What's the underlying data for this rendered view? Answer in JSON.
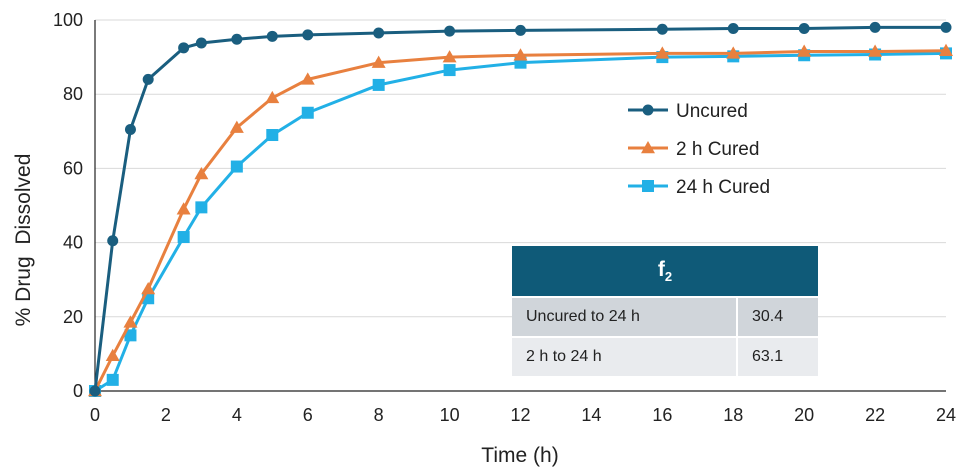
{
  "chart_data": {
    "type": "line",
    "xlabel": "Time (h)",
    "ylabel": "% Drug  Dissolved",
    "xlim": [
      0,
      24
    ],
    "ylim": [
      0,
      100
    ],
    "xticks": [
      "0",
      "2",
      "4",
      "6",
      "8",
      "10",
      "12",
      "14",
      "16",
      "18",
      "20",
      "22",
      "24"
    ],
    "yticks": [
      "0",
      "20",
      "40",
      "60",
      "80",
      "100"
    ],
    "grid": "horizontal",
    "legend_position": "right-middle",
    "series": [
      {
        "name": "Uncured",
        "color": "#1a5e7f",
        "marker": "circle",
        "x": [
          0,
          0.5,
          1,
          1.5,
          2.5,
          3,
          4,
          5,
          6,
          8,
          10,
          12,
          16,
          18,
          20,
          22,
          24
        ],
        "y": [
          0,
          40.5,
          70.5,
          84,
          92.5,
          93.8,
          94.8,
          95.6,
          96,
          96.5,
          97,
          97.2,
          97.5,
          97.7,
          97.7,
          98,
          98
        ]
      },
      {
        "name": "2 h Cured",
        "color": "#e8803f",
        "marker": "triangle",
        "x": [
          0,
          0.5,
          1,
          1.5,
          2.5,
          3,
          4,
          5,
          6,
          8,
          10,
          12,
          16,
          18,
          20,
          22,
          24
        ],
        "y": [
          0,
          9.5,
          18.5,
          27.5,
          49,
          58.5,
          71,
          79,
          84,
          88.5,
          90,
          90.5,
          91,
          91,
          91.5,
          91.5,
          91.7
        ]
      },
      {
        "name": "24 h Cured",
        "color": "#22b0e6",
        "marker": "square",
        "x": [
          0,
          0.5,
          1,
          1.5,
          2.5,
          3,
          4,
          5,
          6,
          8,
          10,
          12,
          16,
          18,
          20,
          22,
          24
        ],
        "y": [
          0,
          3,
          15,
          25,
          41.5,
          49.5,
          60.5,
          69,
          75,
          82.5,
          86.5,
          88.5,
          90,
          90.2,
          90.5,
          90.7,
          91
        ]
      }
    ],
    "annotation_table": {
      "header": "f",
      "header_subscript": "2",
      "rows": [
        {
          "label": "Uncured to 24 h",
          "value": "30.4"
        },
        {
          "label": "2 h to 24 h",
          "value": "63.1"
        }
      ]
    }
  }
}
